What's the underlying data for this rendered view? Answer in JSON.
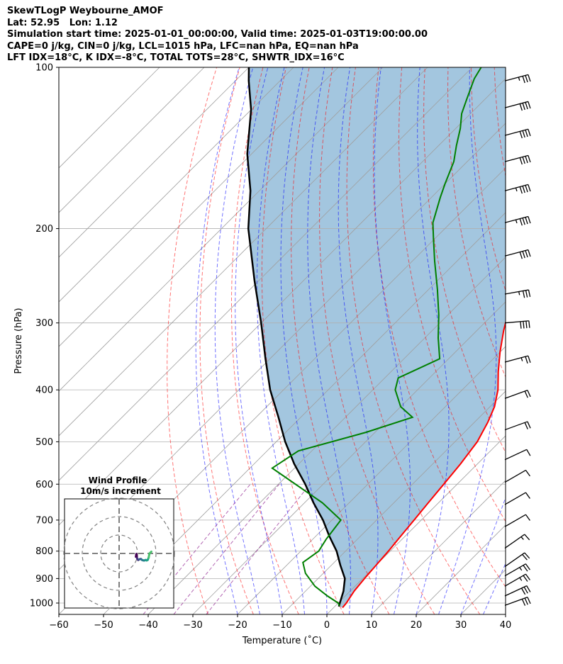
{
  "header": {
    "line1": "SkewTLogP Weybourne_AMOF",
    "line2": "Lat: 52.95   Lon: 1.12",
    "line3": "Simulation start time: 2025-01-01_00:00:00, Valid time: 2025-01-03T19:00:00.00",
    "line4": "CAPE=0 j/kg, CIN=0 j/kg, LCL=1015 hPa, LFC=nan hPa, EQ=nan hPa",
    "line5": "LFT IDX=18°C, K IDX=-8°C, TOTAL TOTS=28°C, SHWTR_IDX=16°C"
  },
  "chart_data": [
    {
      "type": "line",
      "xlabel": "Temperature (˚C)",
      "ylabel": "Pressure (hPa)",
      "xlim": [
        -60,
        40
      ],
      "ylim": [
        1050,
        100
      ],
      "y_scale": "log",
      "skew": true,
      "grid": true,
      "x_ticks": [
        "−60",
        "−50",
        "−40",
        "−30",
        "−20",
        "−10",
        "0",
        "10",
        "20",
        "30",
        "40"
      ],
      "y_ticks": [
        "100",
        "200",
        "300",
        "400",
        "500",
        "600",
        "700",
        "800",
        "900",
        "1000"
      ],
      "colors": {
        "temperature": "#ff0000",
        "dewpoint": "#008000",
        "parcel": "#000000",
        "shading": "#a3c6df",
        "dry_adiabat": "#ff0000",
        "moist_adiabat": "#0000ff",
        "mixing_ratio": "#800080",
        "isotherm": "#808080"
      },
      "series": [
        {
          "key": "temperature",
          "points": [
            [
              2.0,
              1020
            ],
            [
              1.8,
              1000
            ],
            [
              0.9,
              950
            ],
            [
              0.4,
              900
            ],
            [
              0,
              850
            ],
            [
              -0.4,
              800
            ],
            [
              -1,
              750
            ],
            [
              -1.6,
              700
            ],
            [
              -2.3,
              650
            ],
            [
              -3,
              600
            ],
            [
              -3.8,
              550
            ],
            [
              -5,
              500
            ],
            [
              -7,
              460
            ],
            [
              -9,
              430
            ],
            [
              -12,
              400
            ],
            [
              -16,
              370
            ],
            [
              -20,
              340
            ],
            [
              -24,
              310
            ],
            [
              -28,
              280
            ],
            [
              -32,
              250
            ],
            [
              -37,
              220
            ],
            [
              -42,
              200
            ],
            [
              -47,
              180
            ],
            [
              -52,
              160
            ],
            [
              -56,
              140
            ],
            [
              -60,
              125
            ],
            [
              -63,
              110
            ],
            [
              -66,
              100
            ]
          ]
        },
        {
          "key": "dewpoint",
          "points": [
            [
              1.0,
              1013
            ],
            [
              0,
              1000
            ],
            [
              -4,
              970
            ],
            [
              -9,
              930
            ],
            [
              -14,
              880
            ],
            [
              -17,
              840
            ],
            [
              -16,
              800
            ],
            [
              -17,
              760
            ],
            [
              -18,
              700
            ],
            [
              -26,
              650
            ],
            [
              -45,
              560
            ],
            [
              -43,
              520
            ],
            [
              -32,
              480
            ],
            [
              -25,
              450
            ],
            [
              -30,
              430
            ],
            [
              -35,
              400
            ],
            [
              -37,
              380
            ],
            [
              -32,
              350
            ],
            [
              -37,
              320
            ],
            [
              -42,
              290
            ],
            [
              -48,
              260
            ],
            [
              -55,
              230
            ],
            [
              -60,
              210
            ],
            [
              -64,
              195
            ],
            [
              -68,
              175
            ],
            [
              -70,
              165
            ],
            [
              -73,
              150
            ],
            [
              -76,
              140
            ],
            [
              -79,
              130
            ],
            [
              -82,
              122
            ],
            [
              -84,
              115
            ],
            [
              -87,
              105
            ],
            [
              -88,
              100
            ]
          ]
        },
        {
          "key": "parcel",
          "points": [
            [
              0.9,
              1015
            ],
            [
              -1.5,
              950
            ],
            [
              -4,
              900
            ],
            [
              -8,
              850
            ],
            [
              -12,
              800
            ],
            [
              -17,
              750
            ],
            [
              -22,
              700
            ],
            [
              -28,
              650
            ],
            [
              -34,
              600
            ],
            [
              -41,
              550
            ],
            [
              -48,
              500
            ],
            [
              -55,
              450
            ],
            [
              -63,
              400
            ],
            [
              -71,
              350
            ],
            [
              -80,
              300
            ],
            [
              -91,
              250
            ],
            [
              -104,
              200
            ],
            [
              -112,
              170
            ],
            [
              -121,
              145
            ],
            [
              -130,
              120
            ],
            [
              -137,
              106
            ],
            [
              -140,
              100
            ]
          ]
        }
      ],
      "wind_barbs": [
        {
          "p": 1010,
          "speed_kt": 30,
          "dir": 250
        },
        {
          "p": 970,
          "speed_kt": 30,
          "dir": 245
        },
        {
          "p": 930,
          "speed_kt": 25,
          "dir": 240
        },
        {
          "p": 890,
          "speed_kt": 25,
          "dir": 240
        },
        {
          "p": 855,
          "speed_kt": 20,
          "dir": 235
        },
        {
          "p": 790,
          "speed_kt": 15,
          "dir": 235
        },
        {
          "p": 720,
          "speed_kt": 10,
          "dir": 240
        },
        {
          "p": 655,
          "speed_kt": 10,
          "dir": 240
        },
        {
          "p": 595,
          "speed_kt": 10,
          "dir": 240
        },
        {
          "p": 540,
          "speed_kt": 10,
          "dir": 245
        },
        {
          "p": 475,
          "speed_kt": 20,
          "dir": 250
        },
        {
          "p": 415,
          "speed_kt": 20,
          "dir": 250
        },
        {
          "p": 355,
          "speed_kt": 25,
          "dir": 255
        },
        {
          "p": 300,
          "speed_kt": 40,
          "dir": 265
        },
        {
          "p": 265,
          "speed_kt": 35,
          "dir": 260
        },
        {
          "p": 225,
          "speed_kt": 40,
          "dir": 255
        },
        {
          "p": 195,
          "speed_kt": 45,
          "dir": 255
        },
        {
          "p": 170,
          "speed_kt": 45,
          "dir": 255
        },
        {
          "p": 150,
          "speed_kt": 40,
          "dir": 255
        },
        {
          "p": 134,
          "speed_kt": 40,
          "dir": 255
        },
        {
          "p": 119,
          "speed_kt": 40,
          "dir": 255
        },
        {
          "p": 106,
          "speed_kt": 35,
          "dir": 255
        }
      ]
    },
    {
      "type": "scatter",
      "title": "Wind Profile\n10m/s increment",
      "hodograph_points": [
        [
          -1.9,
          -0.1
        ],
        [
          -1.7,
          0.3
        ],
        [
          -1.6,
          0.5
        ],
        [
          -1.4,
          0.2
        ],
        [
          -1.2,
          -0.4
        ],
        [
          -1.0,
          -0.6
        ],
        [
          -0.5,
          -0.8
        ],
        [
          0,
          -0.7
        ],
        [
          0.6,
          -0.6
        ],
        [
          1.2,
          -0.6
        ],
        [
          1.8,
          -0.8
        ],
        [
          2.6,
          -0.9
        ],
        [
          3.3,
          -0.9
        ],
        [
          3.9,
          -0.8
        ],
        [
          4.6,
          -0.9
        ],
        [
          5.2,
          -0.8
        ],
        [
          5.8,
          -0.3
        ],
        [
          6.3,
          0.6
        ],
        [
          7.4,
          1.0
        ]
      ],
      "rings": [
        10,
        20,
        30
      ]
    }
  ]
}
